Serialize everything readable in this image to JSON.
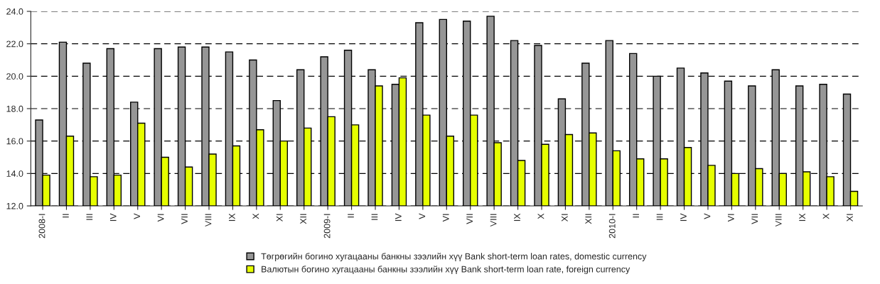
{
  "chart_data": {
    "type": "bar",
    "categories": [
      "2008-I",
      "II",
      "III",
      "IV",
      "V",
      "VI",
      "VII",
      "VIII",
      "IX",
      "X",
      "XI",
      "XII",
      "2009-I",
      "II",
      "III",
      "IV",
      "V",
      "VI",
      "VII",
      "VIII",
      "IX",
      "X",
      "XI",
      "XII",
      "2010-I",
      "II",
      "III",
      "IV",
      "V",
      "VI",
      "VII",
      "VIII",
      "IX",
      "X",
      "XI"
    ],
    "series": [
      {
        "name": "Төгрөгийн богино хугацааны банкны зээлийн хүү Bank short-term loan rates, domestic currency",
        "color": "#969696",
        "values": [
          17.3,
          22.1,
          20.8,
          21.7,
          18.4,
          21.7,
          21.8,
          21.8,
          21.5,
          21.0,
          18.5,
          20.4,
          21.2,
          21.6,
          20.4,
          19.5,
          23.3,
          23.5,
          23.4,
          23.7,
          22.2,
          21.9,
          18.6,
          20.8,
          22.2,
          21.4,
          20.0,
          20.5,
          20.2,
          19.7,
          19.4,
          20.4,
          19.4,
          19.5,
          18.9
        ]
      },
      {
        "name": "Валютын богино хугацааны банкны зээлийн хүү Bank short-term loan rate, foreign currency",
        "color": "#e6ff00",
        "values": [
          13.9,
          16.3,
          13.8,
          13.9,
          17.1,
          15.0,
          14.4,
          15.2,
          15.7,
          16.7,
          16.0,
          16.8,
          17.5,
          17.0,
          19.4,
          19.9,
          17.6,
          16.3,
          17.6,
          15.9,
          14.8,
          15.8,
          16.4,
          16.5,
          15.4,
          14.9,
          14.9,
          15.6,
          14.5,
          14.0,
          14.3,
          14.0,
          14.1,
          13.8,
          12.9
        ]
      }
    ],
    "ylim": [
      12,
      24
    ],
    "yticks": [
      {
        "value": 12,
        "label": "12.0"
      },
      {
        "value": 14,
        "label": "14.0"
      },
      {
        "value": 16,
        "label": "16.0"
      },
      {
        "value": 18,
        "label": "18.0"
      },
      {
        "value": 20,
        "label": "20.0"
      },
      {
        "value": 22,
        "label": "22.0"
      },
      {
        "value": 24,
        "label": "24.0"
      }
    ],
    "grid": "y",
    "legend": "bottom"
  }
}
